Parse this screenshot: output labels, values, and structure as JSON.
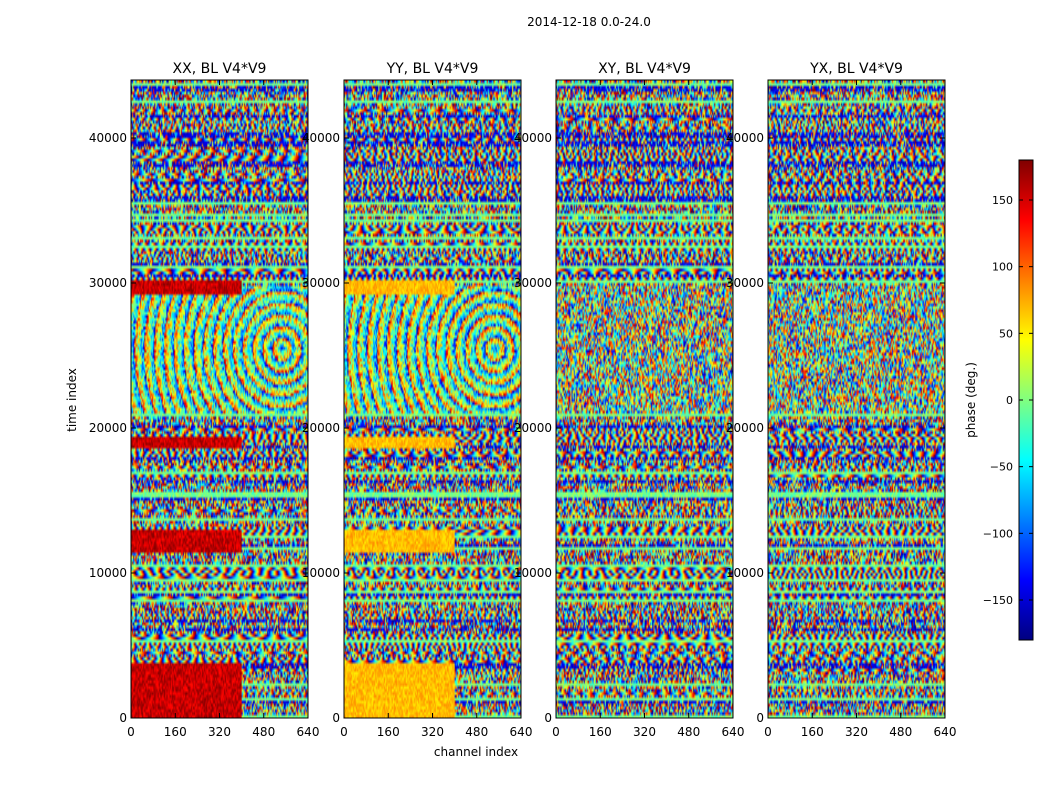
{
  "suptitle": "2014-12-18 0.0-24.0",
  "chart_data": {
    "type": "heatmap",
    "xlabel": "channel index",
    "ylabel": "time index",
    "xlim": [
      0,
      640
    ],
    "ylim": [
      0,
      44000
    ],
    "xticks": [
      0,
      160,
      320,
      480,
      640
    ],
    "yticks": [
      0,
      10000,
      20000,
      30000,
      40000
    ],
    "panels": [
      {
        "title": "XX, BL V4*V9",
        "pol": "XX"
      },
      {
        "title": "YY, BL V4*V9",
        "pol": "YY"
      },
      {
        "title": "XY, BL V4*V9",
        "pol": "XY"
      },
      {
        "title": "YX, BL V4*V9",
        "pol": "YX"
      }
    ],
    "colorbar": {
      "label": "phase (deg.)",
      "range": [
        -180,
        180
      ],
      "ticks": [
        150,
        100,
        50,
        0,
        -50,
        -100,
        -150
      ],
      "tick_labels": [
        "150",
        "100",
        "50",
        "0",
        "−50",
        "−100",
        "−150"
      ],
      "colormap": "jet"
    },
    "colormap_stops": [
      "#000080",
      "#0000ff",
      "#0080ff",
      "#00ffff",
      "#80ff80",
      "#ffff00",
      "#ff8000",
      "#ff0000",
      "#800000"
    ]
  }
}
